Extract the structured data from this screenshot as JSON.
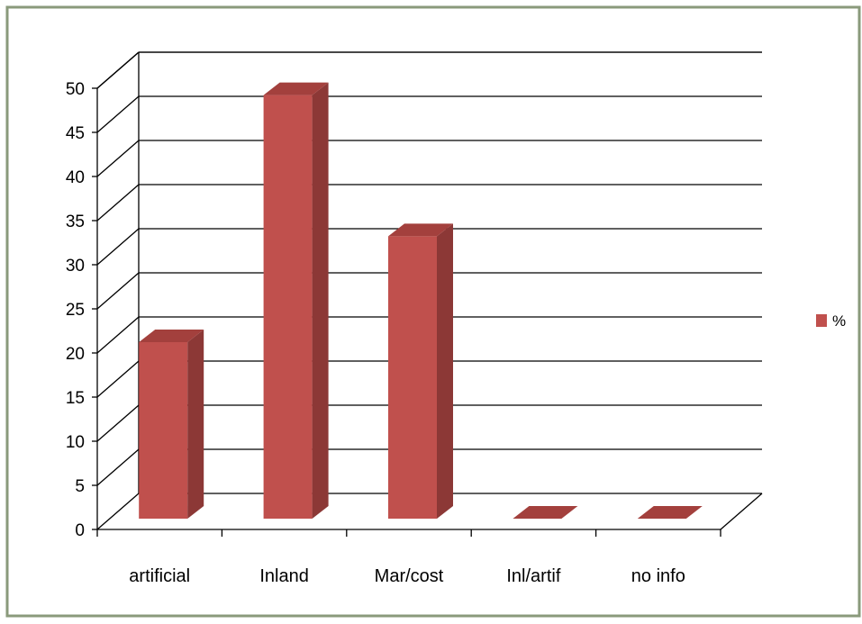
{
  "chart_data": {
    "type": "bar",
    "categories": [
      "artificial",
      "Inland",
      "Mar/cost",
      "Inl/artif",
      "no info"
    ],
    "series": [
      {
        "name": "%",
        "values": [
          20,
          48,
          32,
          0,
          0
        ]
      }
    ],
    "ylim": [
      0,
      50
    ],
    "yticks": [
      0,
      5,
      10,
      15,
      20,
      25,
      30,
      35,
      40,
      45,
      50
    ],
    "grid": true,
    "legend": "right",
    "colors": {
      "bar_front": "#c0504d",
      "bar_side": "#8c3836",
      "bar_top": "#a3403d",
      "gridline": "#000000",
      "frame_border": "#8a9a7b"
    }
  }
}
